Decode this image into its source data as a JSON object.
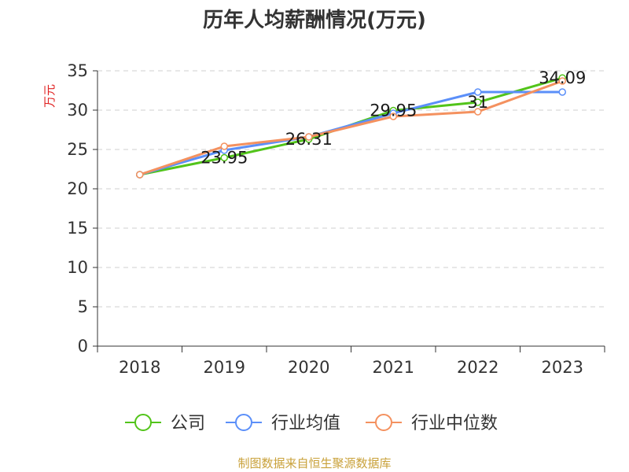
{
  "chart_data": {
    "type": "line",
    "title": "历年人均薪酬情况(万元)",
    "ylabel": "万元",
    "xlabel": "",
    "categories": [
      "2018",
      "2019",
      "2020",
      "2021",
      "2022",
      "2023"
    ],
    "ylim": [
      0,
      35
    ],
    "yticks": [
      0,
      5,
      10,
      15,
      20,
      25,
      30,
      35
    ],
    "grid": true,
    "legend_position": "bottom",
    "series": [
      {
        "name": "公司",
        "color": "#52c41a",
        "values": [
          21.8,
          23.95,
          26.31,
          29.95,
          31.0,
          34.09
        ]
      },
      {
        "name": "行业均值",
        "color": "#5b8ff9",
        "values": [
          21.8,
          24.9,
          26.6,
          29.6,
          32.3,
          32.3
        ]
      },
      {
        "name": "行业中位数",
        "color": "#f4915f",
        "values": [
          21.8,
          25.4,
          26.6,
          29.2,
          29.8,
          33.7
        ]
      }
    ],
    "data_labels": [
      {
        "category": "2019",
        "text": "23.95"
      },
      {
        "category": "2020",
        "text": "26.31"
      },
      {
        "category": "2021",
        "text": "29.95"
      },
      {
        "category": "2022",
        "text": "31"
      },
      {
        "category": "2023",
        "text": "34.09"
      }
    ],
    "source": "制图数据来自恒生聚源数据库"
  }
}
